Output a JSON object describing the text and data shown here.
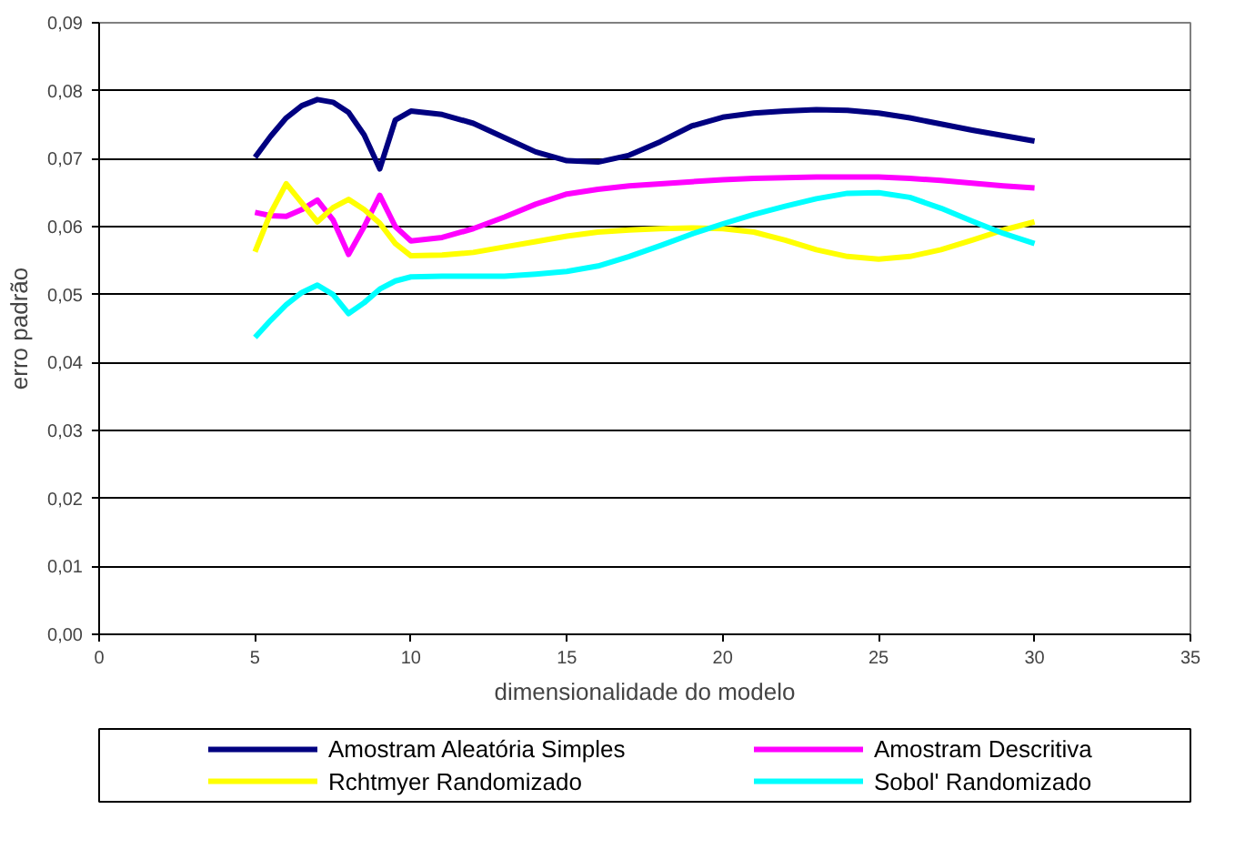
{
  "chart_data": {
    "type": "line",
    "xlabel": "dimensionalidade do modelo",
    "ylabel": "erro padrão",
    "x": [
      5,
      5.5,
      6,
      6.5,
      7,
      7.5,
      8,
      8.5,
      9,
      9.5,
      10,
      11,
      12,
      13,
      14,
      15,
      16,
      17,
      18,
      19,
      20,
      21,
      22,
      23,
      24,
      25,
      26,
      27,
      28,
      29,
      30
    ],
    "series": [
      {
        "name": "Amostram Aleatória Simples",
        "color": "#000080",
        "values": [
          0.0702,
          0.0733,
          0.076,
          0.0778,
          0.0787,
          0.0783,
          0.0768,
          0.0735,
          0.0685,
          0.0757,
          0.077,
          0.0765,
          0.0752,
          0.0731,
          0.071,
          0.0697,
          0.0695,
          0.0705,
          0.0725,
          0.0748,
          0.0761,
          0.0767,
          0.077,
          0.0772,
          0.0771,
          0.0767,
          0.076,
          0.0751,
          0.0742,
          0.0734,
          0.0726
        ]
      },
      {
        "name": "Amostram Descritiva",
        "color": "#ff00ff",
        "values": [
          0.0621,
          0.0616,
          0.0615,
          0.0625,
          0.0639,
          0.061,
          0.0559,
          0.06,
          0.0646,
          0.06,
          0.0579,
          0.0584,
          0.0597,
          0.0614,
          0.0633,
          0.0648,
          0.0655,
          0.066,
          0.0663,
          0.0666,
          0.0669,
          0.0671,
          0.0672,
          0.0673,
          0.0673,
          0.0673,
          0.0671,
          0.0668,
          0.0664,
          0.066,
          0.0657
        ]
      },
      {
        "name": "Rchtmyer Randomizado",
        "color": "#ffff00",
        "values": [
          0.0563,
          0.062,
          0.0663,
          0.0635,
          0.0607,
          0.0628,
          0.064,
          0.0625,
          0.0605,
          0.0575,
          0.0557,
          0.0558,
          0.0562,
          0.057,
          0.0578,
          0.0586,
          0.0592,
          0.0595,
          0.0597,
          0.0598,
          0.0597,
          0.0592,
          0.058,
          0.0566,
          0.0556,
          0.0552,
          0.0556,
          0.0566,
          0.058,
          0.0595,
          0.0607
        ]
      },
      {
        "name": "Sobol' Randomizado",
        "color": "#00ffff",
        "values": [
          0.0437,
          0.0462,
          0.0485,
          0.0503,
          0.0514,
          0.05,
          0.0472,
          0.0488,
          0.0508,
          0.052,
          0.0526,
          0.0527,
          0.0527,
          0.0527,
          0.053,
          0.0534,
          0.0542,
          0.0556,
          0.0572,
          0.0589,
          0.0604,
          0.0618,
          0.063,
          0.0641,
          0.0649,
          0.065,
          0.0643,
          0.0627,
          0.0608,
          0.059,
          0.0575
        ]
      }
    ],
    "xlim": [
      0,
      35
    ],
    "xticks": [
      0,
      5,
      10,
      15,
      20,
      25,
      30,
      35
    ],
    "ylim": [
      0,
      0.09
    ],
    "yticks": [
      {
        "value": 0,
        "label": "0,00"
      },
      {
        "value": 0.01,
        "label": "0,01"
      },
      {
        "value": 0.02,
        "label": "0,02"
      },
      {
        "value": 0.03,
        "label": "0,03"
      },
      {
        "value": 0.04,
        "label": "0,04"
      },
      {
        "value": 0.05,
        "label": "0,05"
      },
      {
        "value": 0.06,
        "label": "0,06"
      },
      {
        "value": 0.07,
        "label": "0,07"
      },
      {
        "value": 0.08,
        "label": "0,08"
      },
      {
        "value": 0.09,
        "label": "0,09"
      }
    ],
    "grid": "y",
    "legend": "bottom",
    "marker": "none",
    "line_style": "solid"
  }
}
